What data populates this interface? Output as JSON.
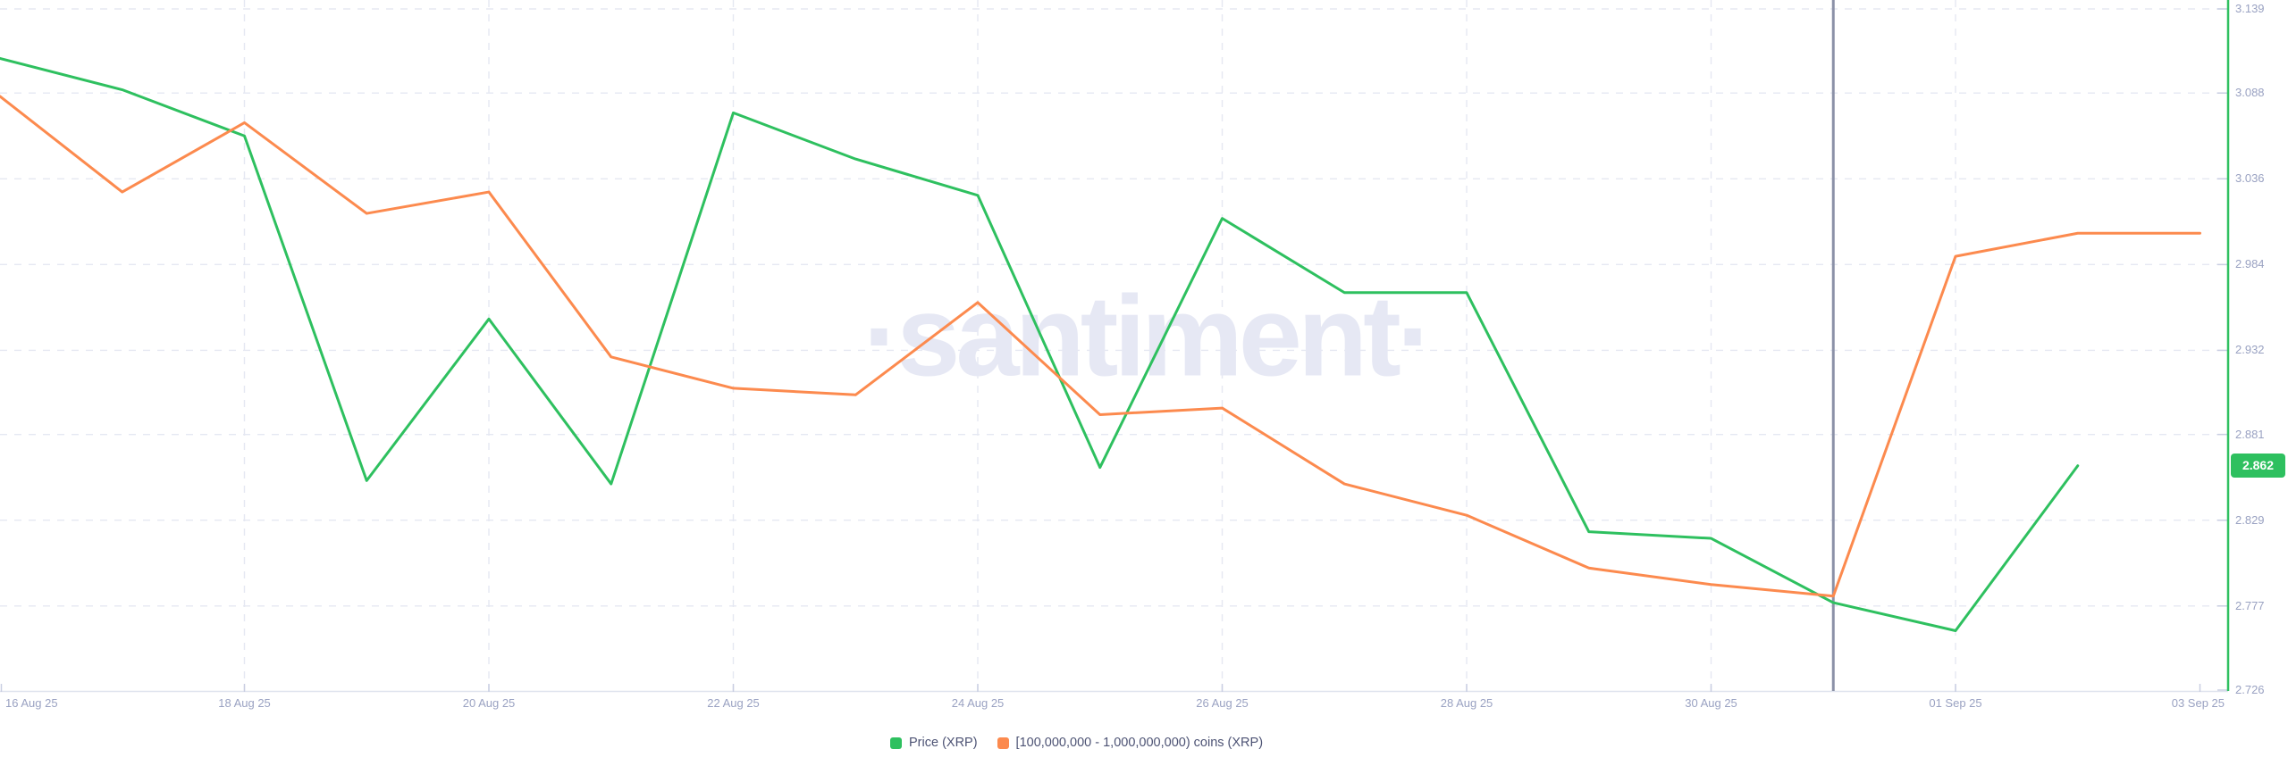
{
  "page": {
    "background": "#ffffff"
  },
  "watermark": {
    "text": "·santiment·",
    "color": "#e6e8f4"
  },
  "badge": {
    "text": "2.862",
    "bg": "#2ec05f",
    "text_color": "#ffffff"
  },
  "legend": {
    "items": [
      {
        "label": "Price (XRP)",
        "color": "#2ec05f"
      },
      {
        "label": "[100,000,000 - 1,000,000,000) coins (XRP)",
        "color": "#fc8a4e"
      }
    ]
  },
  "y_axis": {
    "tick_labels": [
      "3.139",
      "3.088",
      "3.036",
      "2.984",
      "2.932",
      "2.881",
      "2.829",
      "2.777",
      "2.726"
    ],
    "label_color": "#9aa2c2",
    "axis_line_color": "#2ec05f",
    "tick_color": "#c9cee2"
  },
  "x_axis": {
    "tick_labels": [
      "16 Aug 25",
      "18 Aug 25",
      "20 Aug 25",
      "22 Aug 25",
      "24 Aug 25",
      "26 Aug 25",
      "28 Aug 25",
      "30 Aug 25",
      "01 Sep 25",
      "03 Sep 25"
    ],
    "label_color": "#9aa2c2",
    "axis_line_color": "#dfe3ee"
  },
  "highlight_line": {
    "date": "31 Aug 25",
    "color": "#8b91a7"
  },
  "grid_color": "#e5e8f2",
  "chart_data": {
    "type": "line",
    "title": "",
    "xlabel": "",
    "ylabel": "",
    "x": [
      "16 Aug 25",
      "17 Aug 25",
      "18 Aug 25",
      "19 Aug 25",
      "20 Aug 25",
      "21 Aug 25",
      "22 Aug 25",
      "23 Aug 25",
      "24 Aug 25",
      "25 Aug 25",
      "26 Aug 25",
      "27 Aug 25",
      "28 Aug 25",
      "29 Aug 25",
      "30 Aug 25",
      "31 Aug 25",
      "01 Sep 25",
      "02 Sep 25",
      "03 Sep 25"
    ],
    "series": [
      {
        "name": "Price (XRP)",
        "color": "#2ec05f",
        "values": [
          3.109,
          3.09,
          3.062,
          2.853,
          2.951,
          2.851,
          3.076,
          3.048,
          3.026,
          2.861,
          3.012,
          2.967,
          2.967,
          2.822,
          2.818,
          2.779,
          2.762,
          2.862,
          null
        ]
      },
      {
        "name": "[100,000,000 - 1,000,000,000) coins (XRP)",
        "color": "#fc8a4e",
        "values": [
          3.086,
          3.028,
          3.07,
          3.015,
          3.028,
          2.928,
          2.909,
          2.905,
          2.961,
          2.893,
          2.897,
          2.851,
          2.832,
          2.8,
          2.79,
          2.783,
          2.989,
          3.003,
          3.003
        ]
      }
    ],
    "ylim": [
      2.726,
      3.139
    ],
    "grid": true,
    "grid_style": "dashed",
    "legend_position": "bottom-center",
    "y_axis_side": "right",
    "current_value": 2.862,
    "highlight_x": "31 Aug 25"
  }
}
